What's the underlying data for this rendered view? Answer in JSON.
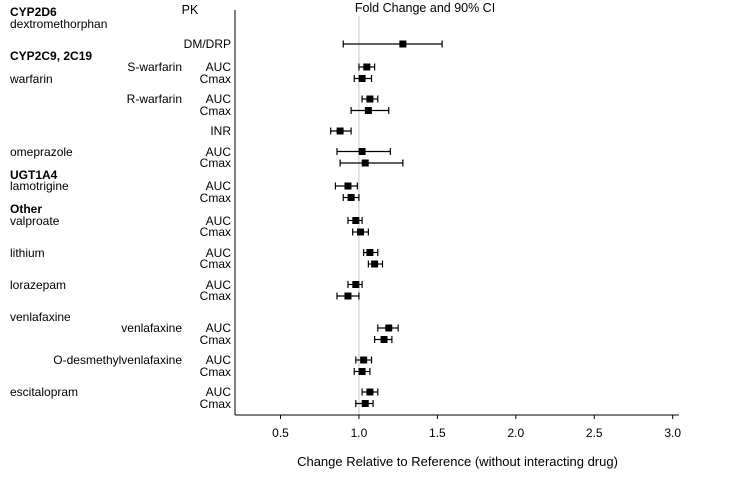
{
  "chart_data": {
    "type": "forest",
    "title": "Fold Change and 90% CI",
    "pk_header": "PK",
    "xlabel": "Change Relative to Reference (without interacting drug)",
    "xticks": [
      0.5,
      1.0,
      1.5,
      2.0,
      2.5,
      3.0
    ],
    "xlim": [
      0.21,
      3.04
    ],
    "reference_line": 1.0,
    "legend": "none",
    "grid": "off",
    "colors": {
      "marker": "#000000",
      "ci_line": "#000000",
      "reference_line": "#c8c8c8",
      "axis": "#000000"
    },
    "rows": [
      {
        "heading": "CYP2D6"
      },
      {
        "drug": "dextromethorphan"
      },
      {
        "pk": "DM/DRP",
        "est": 1.28,
        "lo": 0.9,
        "hi": 1.53,
        "gap": true
      },
      {
        "heading": "CYP2C9, 2C19"
      },
      {
        "analyte": "S-warfarin",
        "pk": "AUC",
        "est": 1.05,
        "lo": 1.0,
        "hi": 1.1
      },
      {
        "drug": "warfarin",
        "pk": "Cmax",
        "est": 1.02,
        "lo": 0.97,
        "hi": 1.08
      },
      {
        "analyte": "R-warfarin",
        "pk": "AUC",
        "est": 1.07,
        "lo": 1.02,
        "hi": 1.12,
        "gap": true
      },
      {
        "pk": "Cmax",
        "est": 1.06,
        "lo": 0.95,
        "hi": 1.19
      },
      {
        "pk": "INR",
        "est": 0.88,
        "lo": 0.82,
        "hi": 0.95,
        "gap": true
      },
      {
        "drug": "omeprazole",
        "pk": "AUC",
        "est": 1.02,
        "lo": 0.86,
        "hi": 1.2,
        "gap": true
      },
      {
        "pk": "Cmax",
        "est": 1.04,
        "lo": 0.88,
        "hi": 1.28
      },
      {
        "heading": "UGT1A4"
      },
      {
        "drug": "lamotrigine",
        "pk": "AUC",
        "est": 0.93,
        "lo": 0.85,
        "hi": 0.99
      },
      {
        "pk": "Cmax",
        "est": 0.95,
        "lo": 0.9,
        "hi": 1.0
      },
      {
        "heading": "Other"
      },
      {
        "drug": "valproate",
        "pk": "AUC",
        "est": 0.98,
        "lo": 0.93,
        "hi": 1.02
      },
      {
        "pk": "Cmax",
        "est": 1.01,
        "lo": 0.96,
        "hi": 1.06
      },
      {
        "drug": "lithium",
        "pk": "AUC",
        "est": 1.07,
        "lo": 1.03,
        "hi": 1.12,
        "gap": true
      },
      {
        "pk": "Cmax",
        "est": 1.1,
        "lo": 1.06,
        "hi": 1.15
      },
      {
        "drug": "lorazepam",
        "pk": "AUC",
        "est": 0.98,
        "lo": 0.93,
        "hi": 1.02,
        "gap": true
      },
      {
        "pk": "Cmax",
        "est": 0.93,
        "lo": 0.86,
        "hi": 1.0
      },
      {
        "drug": "venlafaxine",
        "gap": true
      },
      {
        "analyte": "venlafaxine",
        "pk": "AUC",
        "est": 1.19,
        "lo": 1.12,
        "hi": 1.25
      },
      {
        "pk": "Cmax",
        "est": 1.16,
        "lo": 1.1,
        "hi": 1.21
      },
      {
        "analyte": "O-desmethylvenlafaxine",
        "pk": "AUC",
        "est": 1.03,
        "lo": 0.98,
        "hi": 1.08,
        "gap": true
      },
      {
        "pk": "Cmax",
        "est": 1.02,
        "lo": 0.97,
        "hi": 1.07
      },
      {
        "drug": "escitalopram",
        "pk": "AUC",
        "est": 1.07,
        "lo": 1.02,
        "hi": 1.12,
        "gap": true
      },
      {
        "pk": "Cmax",
        "est": 1.04,
        "lo": 0.98,
        "hi": 1.09
      }
    ]
  }
}
